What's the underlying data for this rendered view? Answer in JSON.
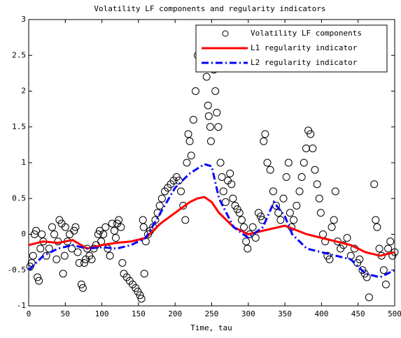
{
  "chart_data": {
    "type": "scatter",
    "title": "Volatility LF components and regularity indicators",
    "x_label": "Time, tau",
    "xlim": [
      0,
      500
    ],
    "xticks": [
      0,
      50,
      100,
      150,
      200,
      250,
      300,
      350,
      400,
      450,
      500
    ],
    "ylim": [
      -1,
      3
    ],
    "yticks": [
      -1,
      -0.5,
      0,
      0.5,
      1,
      1.5,
      2,
      2.5,
      3
    ],
    "legend": "northeast",
    "series": [
      {
        "name": "Volatility LF components",
        "type": "scatter",
        "color": "#000000",
        "x": [
          2,
          4,
          6,
          8,
          10,
          12,
          14,
          16,
          18,
          20,
          24,
          28,
          32,
          35,
          38,
          40,
          42,
          45,
          47,
          49,
          50,
          53,
          56,
          59,
          62,
          64,
          67,
          69,
          72,
          74,
          76,
          78,
          80,
          83,
          86,
          89,
          92,
          95,
          97,
          99,
          102,
          105,
          108,
          111,
          114,
          117,
          119,
          121,
          123,
          126,
          128,
          130,
          134,
          138,
          142,
          146,
          149,
          152,
          154,
          156,
          157,
          158,
          160,
          163,
          166,
          170,
          173,
          176,
          179,
          182,
          186,
          190,
          194,
          198,
          202,
          205,
          208,
          211,
          214,
          216,
          218,
          220,
          222,
          225,
          228,
          231,
          234,
          237,
          239,
          241,
          243,
          245,
          246,
          248,
          249,
          251,
          253,
          255,
          257,
          259,
          262,
          264,
          266,
          269,
          272,
          275,
          277,
          279,
          282,
          285,
          288,
          291,
          294,
          297,
          299,
          302,
          306,
          310,
          314,
          317,
          319,
          321,
          323,
          326,
          330,
          334,
          338,
          341,
          344,
          348,
          352,
          355,
          357,
          359,
          362,
          366,
          370,
          373,
          376,
          379,
          382,
          385,
          388,
          391,
          394,
          397,
          399,
          402,
          405,
          408,
          411,
          414,
          417,
          419,
          422,
          426,
          430,
          435,
          440,
          445,
          449,
          452,
          456,
          459,
          462,
          465,
          472,
          474,
          476,
          479,
          482,
          485,
          488,
          491,
          494,
          497,
          500
        ],
        "values": [
          -0.45,
          -0.4,
          -0.3,
          0.0,
          0.05,
          -0.6,
          -0.65,
          -0.2,
          0.0,
          -0.1,
          -0.3,
          -0.2,
          0.1,
          0.0,
          -0.35,
          -0.1,
          0.2,
          0.15,
          -0.55,
          -0.3,
          0.1,
          -0.1,
          0.0,
          -0.2,
          0.05,
          0.1,
          -0.25,
          -0.4,
          -0.7,
          -0.75,
          -0.4,
          -0.35,
          -0.2,
          -0.3,
          -0.35,
          -0.2,
          -0.15,
          0.0,
          0.05,
          -0.1,
          0.0,
          0.1,
          -0.2,
          -0.3,
          0.15,
          0.05,
          -0.05,
          0.15,
          0.2,
          0.1,
          -0.4,
          -0.55,
          -0.6,
          -0.65,
          -0.7,
          -0.75,
          -0.8,
          -0.85,
          -0.9,
          0.2,
          0.1,
          -0.55,
          -0.1,
          0.0,
          0.05,
          0.1,
          0.2,
          0.3,
          0.4,
          0.5,
          0.6,
          0.65,
          0.7,
          0.75,
          0.8,
          0.75,
          0.6,
          0.4,
          0.2,
          1.0,
          1.4,
          1.3,
          1.1,
          1.6,
          2.0,
          2.5,
          2.85,
          2.75,
          2.6,
          2.4,
          2.2,
          1.8,
          1.65,
          1.5,
          1.3,
          2.6,
          2.3,
          2.0,
          1.7,
          1.5,
          1.0,
          0.8,
          0.6,
          0.45,
          0.75,
          0.85,
          0.7,
          0.5,
          0.4,
          0.35,
          0.3,
          0.2,
          0.1,
          -0.1,
          -0.2,
          0.0,
          0.1,
          -0.05,
          0.3,
          0.25,
          0.2,
          1.3,
          1.4,
          1.0,
          0.9,
          0.6,
          0.4,
          0.3,
          0.2,
          0.5,
          0.8,
          1.0,
          0.3,
          0.1,
          0.2,
          0.4,
          0.6,
          0.8,
          1.0,
          1.2,
          1.45,
          1.4,
          1.2,
          0.9,
          0.7,
          0.5,
          0.3,
          0.0,
          -0.1,
          -0.3,
          -0.35,
          0.1,
          0.2,
          0.6,
          -0.1,
          -0.2,
          -0.15,
          -0.05,
          -0.3,
          -0.2,
          -0.4,
          -0.35,
          -0.5,
          -0.55,
          -0.6,
          -0.88,
          0.7,
          0.2,
          0.1,
          -0.2,
          -0.3,
          -0.5,
          -0.7,
          -0.2,
          -0.1,
          -0.3,
          -0.25
        ]
      },
      {
        "name": "L1 regularity indicator",
        "type": "line",
        "dash": "solid",
        "color": "#ff0000",
        "x": [
          0,
          20,
          40,
          60,
          80,
          100,
          120,
          140,
          160,
          180,
          200,
          220,
          230,
          240,
          250,
          260,
          280,
          300,
          320,
          350,
          380,
          400,
          420,
          440,
          460,
          480,
          500
        ],
        "values": [
          -0.15,
          -0.1,
          -0.12,
          -0.08,
          -0.2,
          -0.15,
          -0.12,
          -0.1,
          -0.05,
          0.15,
          0.3,
          0.45,
          0.5,
          0.52,
          0.45,
          0.3,
          0.1,
          0.0,
          0.05,
          0.12,
          0.0,
          -0.05,
          -0.1,
          -0.15,
          -0.25,
          -0.3,
          -0.25
        ]
      },
      {
        "name": "L2 regularity indicator",
        "type": "line",
        "dash": "dashdot",
        "color": "#0000ff",
        "x": [
          0,
          20,
          40,
          60,
          80,
          100,
          120,
          140,
          160,
          180,
          200,
          220,
          240,
          250,
          260,
          280,
          300,
          320,
          335,
          350,
          360,
          380,
          400,
          420,
          440,
          460,
          480,
          500
        ],
        "values": [
          -0.5,
          -0.3,
          -0.2,
          -0.15,
          -0.2,
          -0.18,
          -0.2,
          -0.15,
          -0.05,
          0.3,
          0.65,
          0.85,
          0.98,
          0.95,
          0.5,
          0.1,
          -0.05,
          0.1,
          0.45,
          0.25,
          0.0,
          -0.2,
          -0.25,
          -0.3,
          -0.35,
          -0.55,
          -0.6,
          -0.5
        ]
      }
    ]
  }
}
